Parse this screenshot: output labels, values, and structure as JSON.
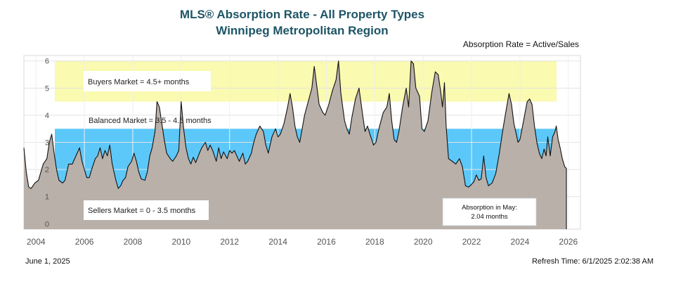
{
  "header": {
    "title": "MLS® Absorption Rate - All Property Types",
    "subtitle": "Winnipeg Metropolitan Region",
    "formula": "Absorption Rate = Active/Sales"
  },
  "footer": {
    "date": "June 1, 2025",
    "refresh": "Refresh Time: 6/1/2025 2:02:38 AM"
  },
  "chart_data": {
    "type": "area",
    "title": "MLS® Absorption Rate - All Property Types",
    "subtitle": "Winnipeg Metropolitan Region",
    "xlabel": "",
    "ylabel": "",
    "xlim": [
      2003.5,
      2026.5
    ],
    "ylim": [
      -0.2,
      6.2
    ],
    "x_ticks": [
      2004,
      2006,
      2008,
      2010,
      2012,
      2014,
      2016,
      2018,
      2020,
      2022,
      2024,
      2026
    ],
    "y_ticks": [
      0,
      1,
      2,
      3,
      4,
      5,
      6
    ],
    "grid": true,
    "colors": {
      "area": "#b9b0aa",
      "line": "#111111",
      "buyers_band": "#fafab0",
      "balanced_band": "#ffffff",
      "sellers_band": "#5cc8fa"
    },
    "bands": [
      {
        "label": "Buyers Market = 4.5+ months",
        "from": 4.5,
        "to": 6.0
      },
      {
        "label": "Balanced Market = 3.5 - 4.5 months",
        "from": 3.5,
        "to": 4.5
      },
      {
        "label": "Sellers Market = 0 - 3.5 months",
        "from": 0,
        "to": 3.5
      }
    ],
    "callout": {
      "line1": "Absorption in May:",
      "line2": "2.04 months"
    },
    "series": [
      {
        "points": [
          [
            2003.5,
            2.8
          ],
          [
            2003.6,
            1.9
          ],
          [
            2003.7,
            1.35
          ],
          [
            2003.8,
            1.3
          ],
          [
            2003.95,
            1.5
          ],
          [
            2004.1,
            1.6
          ],
          [
            2004.3,
            2.2
          ],
          [
            2004.45,
            2.4
          ],
          [
            2004.55,
            3.0
          ],
          [
            2004.65,
            3.3
          ],
          [
            2004.75,
            2.6
          ],
          [
            2004.85,
            2.0
          ],
          [
            2004.95,
            1.6
          ],
          [
            2005.1,
            1.5
          ],
          [
            2005.2,
            1.6
          ],
          [
            2005.35,
            2.2
          ],
          [
            2005.5,
            2.2
          ],
          [
            2005.6,
            2.4
          ],
          [
            2005.7,
            2.6
          ],
          [
            2005.8,
            2.8
          ],
          [
            2005.9,
            2.3
          ],
          [
            2006.0,
            2.0
          ],
          [
            2006.1,
            1.7
          ],
          [
            2006.2,
            1.7
          ],
          [
            2006.3,
            2.0
          ],
          [
            2006.45,
            2.4
          ],
          [
            2006.55,
            2.5
          ],
          [
            2006.65,
            2.8
          ],
          [
            2006.75,
            2.4
          ],
          [
            2006.85,
            2.7
          ],
          [
            2006.95,
            2.5
          ],
          [
            2007.05,
            2.9
          ],
          [
            2007.15,
            2.2
          ],
          [
            2007.3,
            1.6
          ],
          [
            2007.4,
            1.3
          ],
          [
            2007.5,
            1.4
          ],
          [
            2007.6,
            1.6
          ],
          [
            2007.7,
            1.7
          ],
          [
            2007.8,
            2.1
          ],
          [
            2007.95,
            2.3
          ],
          [
            2008.05,
            2.6
          ],
          [
            2008.15,
            2.3
          ],
          [
            2008.25,
            1.9
          ],
          [
            2008.35,
            1.65
          ],
          [
            2008.5,
            1.6
          ],
          [
            2008.6,
            1.9
          ],
          [
            2008.7,
            2.5
          ],
          [
            2008.8,
            2.8
          ],
          [
            2008.92,
            3.4
          ],
          [
            2009.0,
            4.5
          ],
          [
            2009.1,
            4.3
          ],
          [
            2009.2,
            3.7
          ],
          [
            2009.3,
            3.1
          ],
          [
            2009.4,
            2.6
          ],
          [
            2009.55,
            2.4
          ],
          [
            2009.65,
            2.3
          ],
          [
            2009.8,
            2.5
          ],
          [
            2009.9,
            2.7
          ],
          [
            2010.0,
            4.5
          ],
          [
            2010.1,
            3.5
          ],
          [
            2010.2,
            2.8
          ],
          [
            2010.3,
            2.4
          ],
          [
            2010.4,
            2.2
          ],
          [
            2010.5,
            2.45
          ],
          [
            2010.6,
            2.25
          ],
          [
            2010.75,
            2.6
          ],
          [
            2010.85,
            2.8
          ],
          [
            2011.0,
            3.0
          ],
          [
            2011.1,
            2.7
          ],
          [
            2011.2,
            2.9
          ],
          [
            2011.3,
            2.7
          ],
          [
            2011.45,
            2.3
          ],
          [
            2011.55,
            2.8
          ],
          [
            2011.65,
            2.4
          ],
          [
            2011.75,
            2.65
          ],
          [
            2011.9,
            2.4
          ],
          [
            2012.0,
            2.7
          ],
          [
            2012.1,
            2.6
          ],
          [
            2012.2,
            2.7
          ],
          [
            2012.3,
            2.5
          ],
          [
            2012.4,
            2.3
          ],
          [
            2012.55,
            2.6
          ],
          [
            2012.65,
            2.2
          ],
          [
            2012.75,
            2.3
          ],
          [
            2012.9,
            2.6
          ],
          [
            2013.0,
            3.0
          ],
          [
            2013.1,
            3.3
          ],
          [
            2013.25,
            3.6
          ],
          [
            2013.4,
            3.4
          ],
          [
            2013.5,
            2.9
          ],
          [
            2013.6,
            2.6
          ],
          [
            2013.75,
            3.2
          ],
          [
            2013.9,
            3.5
          ],
          [
            2014.0,
            3.2
          ],
          [
            2014.1,
            3.3
          ],
          [
            2014.25,
            3.7
          ],
          [
            2014.4,
            4.3
          ],
          [
            2014.5,
            4.8
          ],
          [
            2014.6,
            4.3
          ],
          [
            2014.7,
            3.6
          ],
          [
            2014.8,
            3.2
          ],
          [
            2014.9,
            3.0
          ],
          [
            2015.0,
            3.5
          ],
          [
            2015.1,
            4.0
          ],
          [
            2015.25,
            4.5
          ],
          [
            2015.4,
            5.0
          ],
          [
            2015.5,
            5.8
          ],
          [
            2015.6,
            5.1
          ],
          [
            2015.7,
            4.4
          ],
          [
            2015.85,
            4.1
          ],
          [
            2015.95,
            4.0
          ],
          [
            2016.1,
            4.4
          ],
          [
            2016.25,
            4.9
          ],
          [
            2016.4,
            5.3
          ],
          [
            2016.5,
            6.0
          ],
          [
            2016.6,
            4.8
          ],
          [
            2016.75,
            3.8
          ],
          [
            2016.85,
            3.5
          ],
          [
            2016.95,
            3.3
          ],
          [
            2017.05,
            3.9
          ],
          [
            2017.2,
            4.6
          ],
          [
            2017.35,
            5.0
          ],
          [
            2017.5,
            4.0
          ],
          [
            2017.6,
            3.4
          ],
          [
            2017.7,
            3.6
          ],
          [
            2017.8,
            3.3
          ],
          [
            2017.95,
            2.9
          ],
          [
            2018.05,
            3.0
          ],
          [
            2018.2,
            3.6
          ],
          [
            2018.35,
            4.1
          ],
          [
            2018.5,
            4.3
          ],
          [
            2018.6,
            4.8
          ],
          [
            2018.7,
            3.8
          ],
          [
            2018.8,
            3.1
          ],
          [
            2018.9,
            3.0
          ],
          [
            2019.0,
            3.4
          ],
          [
            2019.15,
            4.3
          ],
          [
            2019.3,
            5.0
          ],
          [
            2019.4,
            4.3
          ],
          [
            2019.5,
            6.0
          ],
          [
            2019.6,
            5.9
          ],
          [
            2019.7,
            5.0
          ],
          [
            2019.85,
            4.7
          ],
          [
            2019.95,
            3.5
          ],
          [
            2020.05,
            3.4
          ],
          [
            2020.2,
            3.8
          ],
          [
            2020.35,
            4.8
          ],
          [
            2020.5,
            5.6
          ],
          [
            2020.62,
            5.5
          ],
          [
            2020.72,
            4.9
          ],
          [
            2020.8,
            4.3
          ],
          [
            2020.88,
            5.2
          ],
          [
            2020.95,
            3.6
          ],
          [
            2021.05,
            2.4
          ],
          [
            2021.2,
            2.3
          ],
          [
            2021.35,
            2.2
          ],
          [
            2021.5,
            2.4
          ],
          [
            2021.62,
            2.1
          ],
          [
            2021.75,
            1.4
          ],
          [
            2021.88,
            1.35
          ],
          [
            2022.0,
            1.45
          ],
          [
            2022.1,
            1.55
          ],
          [
            2022.2,
            1.8
          ],
          [
            2022.3,
            1.6
          ],
          [
            2022.4,
            1.65
          ],
          [
            2022.5,
            2.5
          ],
          [
            2022.6,
            1.7
          ],
          [
            2022.7,
            1.4
          ],
          [
            2022.85,
            1.5
          ],
          [
            2023.0,
            1.85
          ],
          [
            2023.15,
            2.6
          ],
          [
            2023.3,
            3.5
          ],
          [
            2023.45,
            4.3
          ],
          [
            2023.55,
            4.8
          ],
          [
            2023.65,
            4.4
          ],
          [
            2023.75,
            3.7
          ],
          [
            2023.85,
            3.3
          ],
          [
            2023.92,
            3.0
          ],
          [
            2024.0,
            3.1
          ],
          [
            2024.15,
            3.8
          ],
          [
            2024.3,
            4.5
          ],
          [
            2024.4,
            4.6
          ],
          [
            2024.5,
            4.4
          ],
          [
            2024.6,
            3.6
          ],
          [
            2024.7,
            3.0
          ],
          [
            2024.8,
            2.6
          ],
          [
            2024.9,
            2.4
          ],
          [
            2025.0,
            2.75
          ],
          [
            2025.08,
            2.5
          ],
          [
            2025.15,
            3.2
          ],
          [
            2025.25,
            2.5
          ],
          [
            2025.35,
            3.2
          ],
          [
            2025.45,
            3.4
          ],
          [
            2025.5,
            3.6
          ],
          [
            2025.58,
            3.1
          ],
          [
            2025.66,
            2.8
          ],
          [
            2025.75,
            2.4
          ],
          [
            2025.85,
            2.1
          ],
          [
            2025.92,
            2.04
          ]
        ]
      }
    ]
  }
}
